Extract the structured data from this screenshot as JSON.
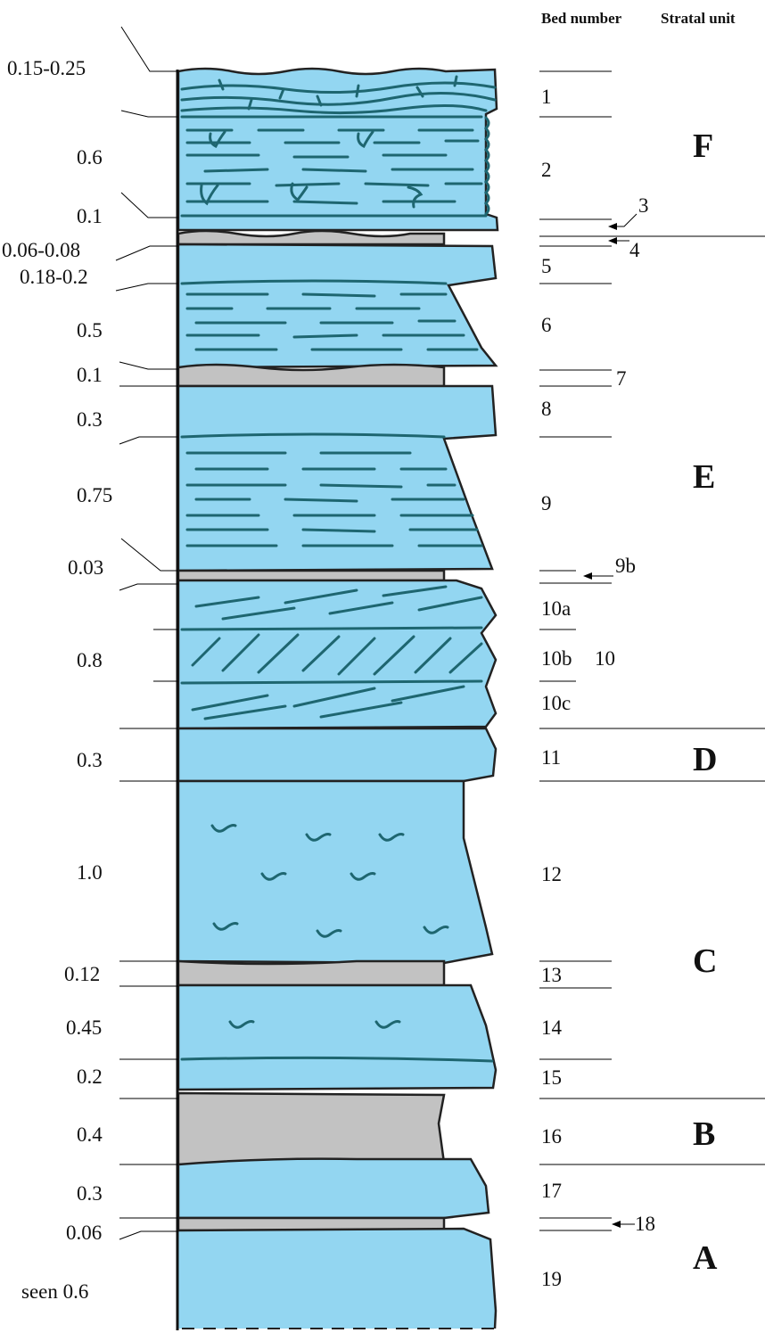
{
  "headers": {
    "bed_number": "Bed number",
    "stratal_unit": "Stratal unit"
  },
  "colors": {
    "limestone": "#93d6f1",
    "marl": "#c2c2c2",
    "laminae": "#1e6670",
    "outline": "#222222"
  },
  "thicknesses": [
    "0.15-0.25",
    "0.6",
    "0.1",
    "0.06-0.08",
    "0.18-0.2",
    "0.5",
    "0.1",
    "0.3",
    "0.75",
    "0.03",
    "0.8",
    "0.3",
    "1.0",
    "0.12",
    "0.45",
    "0.2",
    "0.4",
    "0.3",
    "0.06",
    "seen 0.6"
  ],
  "beds": [
    "1",
    "2",
    "3",
    "4",
    "5",
    "6",
    "7",
    "8",
    "9",
    "9b",
    "10a",
    "10b",
    "10",
    "10c",
    "11",
    "12",
    "13",
    "14",
    "15",
    "16",
    "17",
    "18",
    "19"
  ],
  "units": [
    "F",
    "E",
    "D",
    "C",
    "B",
    "A"
  ],
  "lithology_key": [
    "limestone",
    "limestone",
    "limestone",
    "marl",
    "limestone",
    "limestone",
    "marl",
    "limestone",
    "limestone",
    "marl",
    "limestone",
    "limestone",
    "limestone",
    "marl",
    "limestone",
    "limestone",
    "marl",
    "limestone",
    "marl",
    "limestone"
  ],
  "symbol_names": [
    "ripple-laminae",
    "burrow",
    "shell-fossil",
    "cross-bedding"
  ]
}
